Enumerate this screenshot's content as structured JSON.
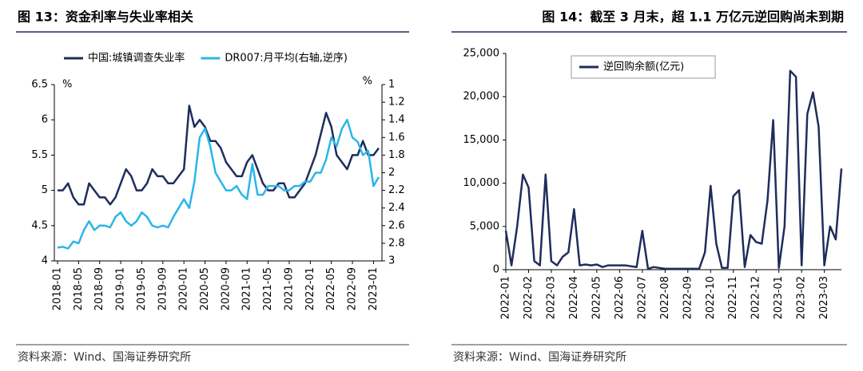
{
  "chart_data": [
    {
      "type": "line",
      "title": "图 13：资金利率与失业率相关",
      "source": "资料来源：Wind、国海证券研究所",
      "y_unit": "%",
      "y2_unit": "%",
      "y2_reversed": true,
      "categories": [
        "2018-01",
        null,
        null,
        null,
        "2018-05",
        null,
        null,
        null,
        "2018-09",
        null,
        null,
        null,
        "2019-01",
        null,
        null,
        null,
        "2019-05",
        null,
        null,
        null,
        "2019-09",
        null,
        null,
        null,
        "2020-01",
        null,
        null,
        null,
        "2020-05",
        null,
        null,
        null,
        "2020-09",
        null,
        null,
        null,
        "2021-01",
        null,
        null,
        null,
        "2021-05",
        null,
        null,
        null,
        "2021-09",
        null,
        null,
        null,
        "2022-01",
        null,
        null,
        null,
        "2022-05",
        null,
        null,
        null,
        "2022-09",
        null,
        null,
        null,
        "2023-01",
        null
      ],
      "series": [
        {
          "name": "中国:城镇调查失业率",
          "color": "#1f2d5c",
          "values": [
            5.0,
            5.0,
            5.1,
            4.9,
            4.8,
            4.8,
            5.1,
            5.0,
            4.9,
            4.9,
            4.8,
            4.9,
            5.1,
            5.3,
            5.2,
            5.0,
            5.0,
            5.1,
            5.3,
            5.2,
            5.2,
            5.1,
            5.1,
            5.2,
            5.3,
            6.2,
            5.9,
            6.0,
            5.9,
            5.7,
            5.7,
            5.6,
            5.4,
            5.3,
            5.2,
            5.2,
            5.4,
            5.5,
            5.3,
            5.1,
            5.0,
            5.0,
            5.1,
            5.1,
            4.9,
            4.9,
            5.0,
            5.1,
            5.3,
            5.5,
            5.8,
            6.1,
            5.9,
            5.5,
            5.4,
            5.3,
            5.5,
            5.5,
            5.7,
            5.5,
            5.5,
            5.6
          ]
        },
        {
          "name": "DR007:月平均(右轴,逆序)",
          "color": "#29b6e8",
          "axis": "y2",
          "values": [
            2.85,
            2.84,
            2.86,
            2.78,
            2.8,
            2.65,
            2.55,
            2.65,
            2.6,
            2.6,
            2.62,
            2.5,
            2.45,
            2.55,
            2.6,
            2.55,
            2.45,
            2.5,
            2.6,
            2.62,
            2.6,
            2.62,
            2.5,
            2.4,
            2.3,
            2.4,
            2.1,
            1.6,
            1.5,
            1.7,
            2.0,
            2.1,
            2.2,
            2.2,
            2.15,
            2.25,
            2.3,
            1.9,
            2.25,
            2.25,
            2.15,
            2.15,
            2.15,
            2.2,
            2.2,
            2.15,
            2.15,
            2.1,
            2.1,
            2.0,
            2.0,
            1.85,
            1.6,
            1.7,
            1.5,
            1.4,
            1.6,
            1.65,
            1.8,
            1.75,
            2.15,
            2.05
          ]
        }
      ],
      "ylim": [
        4,
        6.5
      ],
      "yticks": [
        4,
        4.5,
        5,
        5.5,
        6,
        6.5
      ],
      "y2lim": [
        1,
        3
      ],
      "y2ticks": [
        1,
        1.2,
        1.4,
        1.6,
        1.8,
        2,
        2.2,
        2.4,
        2.6,
        2.8,
        3
      ]
    },
    {
      "type": "line",
      "title": "图 14：截至 3 月末，超 1.1 万亿元逆回购尚未到期",
      "source": "资料来源：Wind、国海证券研究所",
      "categories": [
        "2022-01",
        null,
        null,
        null,
        "2022-02",
        null,
        null,
        null,
        "2022-03",
        null,
        null,
        null,
        "2022-04",
        null,
        null,
        null,
        "2022-05",
        null,
        null,
        null,
        "2022-06",
        null,
        null,
        null,
        "2022-07",
        null,
        null,
        null,
        "2022-08",
        null,
        null,
        null,
        "2022-09",
        null,
        null,
        null,
        "2022-10",
        null,
        null,
        null,
        "2022-11",
        null,
        null,
        null,
        "2022-12",
        null,
        null,
        null,
        "2023-01",
        null,
        null,
        null,
        "2023-02",
        null,
        null,
        null,
        "2023-03",
        null,
        null,
        null
      ],
      "series": [
        {
          "name": "逆回购余额(亿元)",
          "color": "#1f2d5c",
          "values": [
            4500,
            500,
            5000,
            11000,
            9500,
            1000,
            500,
            11000,
            1000,
            500,
            1500,
            2000,
            7000,
            500,
            600,
            500,
            600,
            300,
            500,
            500,
            500,
            500,
            400,
            300,
            4500,
            100,
            300,
            200,
            100,
            100,
            100,
            100,
            100,
            100,
            100,
            2000,
            9700,
            3000,
            200,
            200,
            8500,
            9200,
            300,
            4000,
            3200,
            3000,
            8000,
            17300,
            200,
            5000,
            23000,
            22300,
            500,
            18000,
            20500,
            16500,
            500,
            5000,
            3500,
            11700
          ]
        }
      ],
      "ylim": [
        0,
        25000
      ],
      "yticks": [
        0,
        {
          "value": 5000,
          "label": "5,000"
        },
        {
          "value": 10000,
          "label": "10,000"
        },
        {
          "value": 15000,
          "label": "15,000"
        },
        {
          "value": 20000,
          "label": "20,000"
        },
        {
          "value": 25000,
          "label": "25,000"
        }
      ]
    }
  ]
}
